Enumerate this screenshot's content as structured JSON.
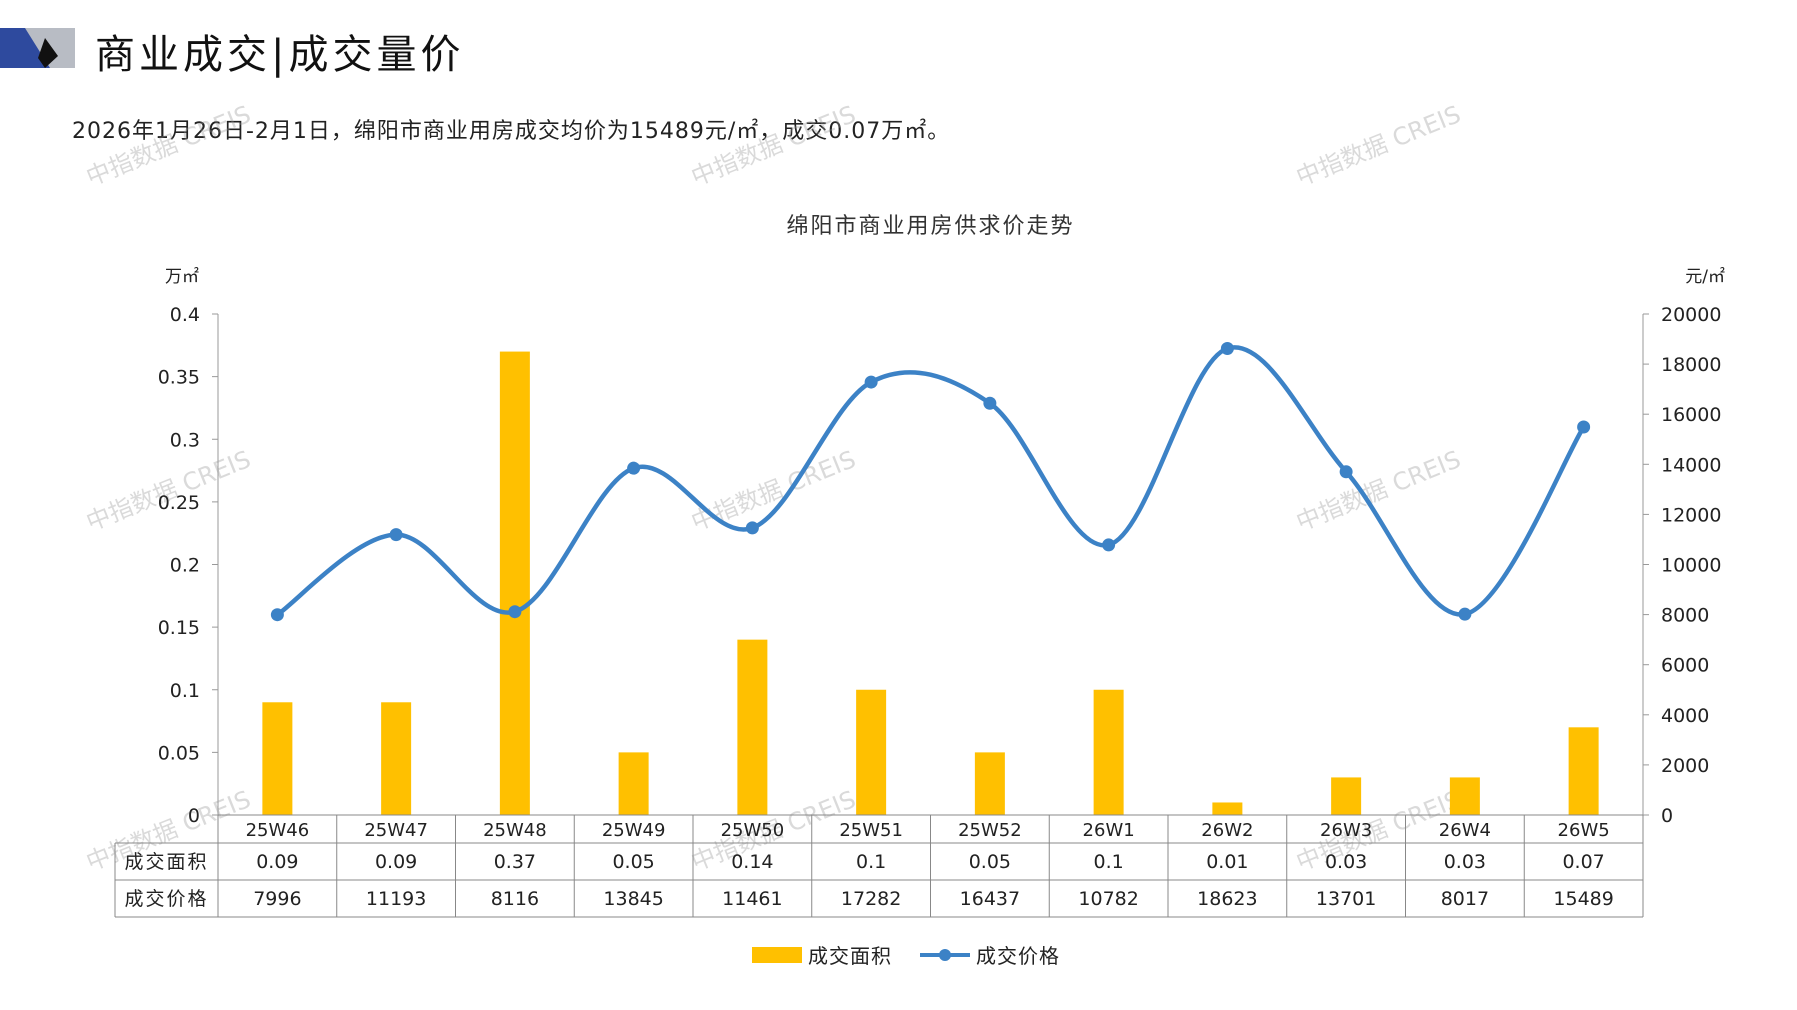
{
  "header": {
    "title": "商业成交|成交量价",
    "summary": "2026年1月26日-2月1日，绵阳市商业用房成交均价为15489元/㎡，成交0.07万㎡。"
  },
  "watermark": "中指数据 CREIS",
  "colors": {
    "bar": "#FFC000",
    "line": "#3C82C6",
    "logo_blue": "#2E4A9E",
    "logo_gray": "#B8BCC4"
  },
  "chart_data": {
    "type": "bar+line",
    "title": "绵阳市商业用房供求价走势",
    "categories": [
      "25W46",
      "25W47",
      "25W48",
      "25W49",
      "25W50",
      "25W51",
      "25W52",
      "26W1",
      "26W2",
      "26W3",
      "26W4",
      "26W5"
    ],
    "series": [
      {
        "name": "成交面积",
        "type": "bar",
        "axis": "left",
        "values": [
          0.09,
          0.09,
          0.37,
          0.05,
          0.14,
          0.1,
          0.05,
          0.1,
          0.01,
          0.03,
          0.03,
          0.07
        ]
      },
      {
        "name": "成交价格",
        "type": "line",
        "axis": "right",
        "values": [
          7996,
          11193,
          8116,
          13845,
          11461,
          17282,
          16437,
          10782,
          18623,
          13701,
          8017,
          15489
        ]
      }
    ],
    "y_left": {
      "label": "万㎡",
      "min": 0,
      "max": 0.4,
      "ticks": [
        "0",
        "0.05",
        "0.1",
        "0.15",
        "0.2",
        "0.25",
        "0.3",
        "0.35",
        "0.4"
      ]
    },
    "y_right": {
      "label": "元/㎡",
      "min": 0,
      "max": 20000,
      "ticks": [
        "0",
        "2000",
        "4000",
        "6000",
        "8000",
        "10000",
        "12000",
        "14000",
        "16000",
        "18000",
        "20000"
      ]
    },
    "table_rows": [
      {
        "label": "成交面积",
        "cells": [
          "0.09",
          "0.09",
          "0.37",
          "0.05",
          "0.14",
          "0.1",
          "0.05",
          "0.1",
          "0.01",
          "0.03",
          "0.03",
          "0.07"
        ]
      },
      {
        "label": "成交价格",
        "cells": [
          "7996",
          "11193",
          "8116",
          "13845",
          "11461",
          "17282",
          "16437",
          "10782",
          "18623",
          "13701",
          "8017",
          "15489"
        ]
      }
    ],
    "legend": [
      "成交面积",
      "成交价格"
    ],
    "legend_position": "bottom"
  }
}
